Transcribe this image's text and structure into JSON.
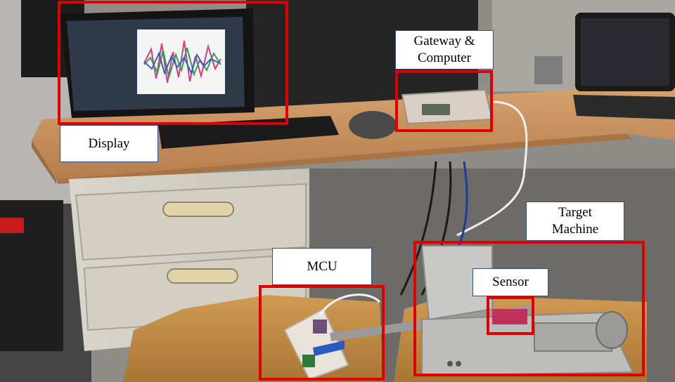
{
  "labels": {
    "display": "Display",
    "gateway": "Gateway &\nComputer",
    "target": "Target\nMachine",
    "mcu": "MCU",
    "sensor": "Sensor"
  },
  "highlight_color": "#e00000",
  "label_border_color": "#2d4f8a"
}
